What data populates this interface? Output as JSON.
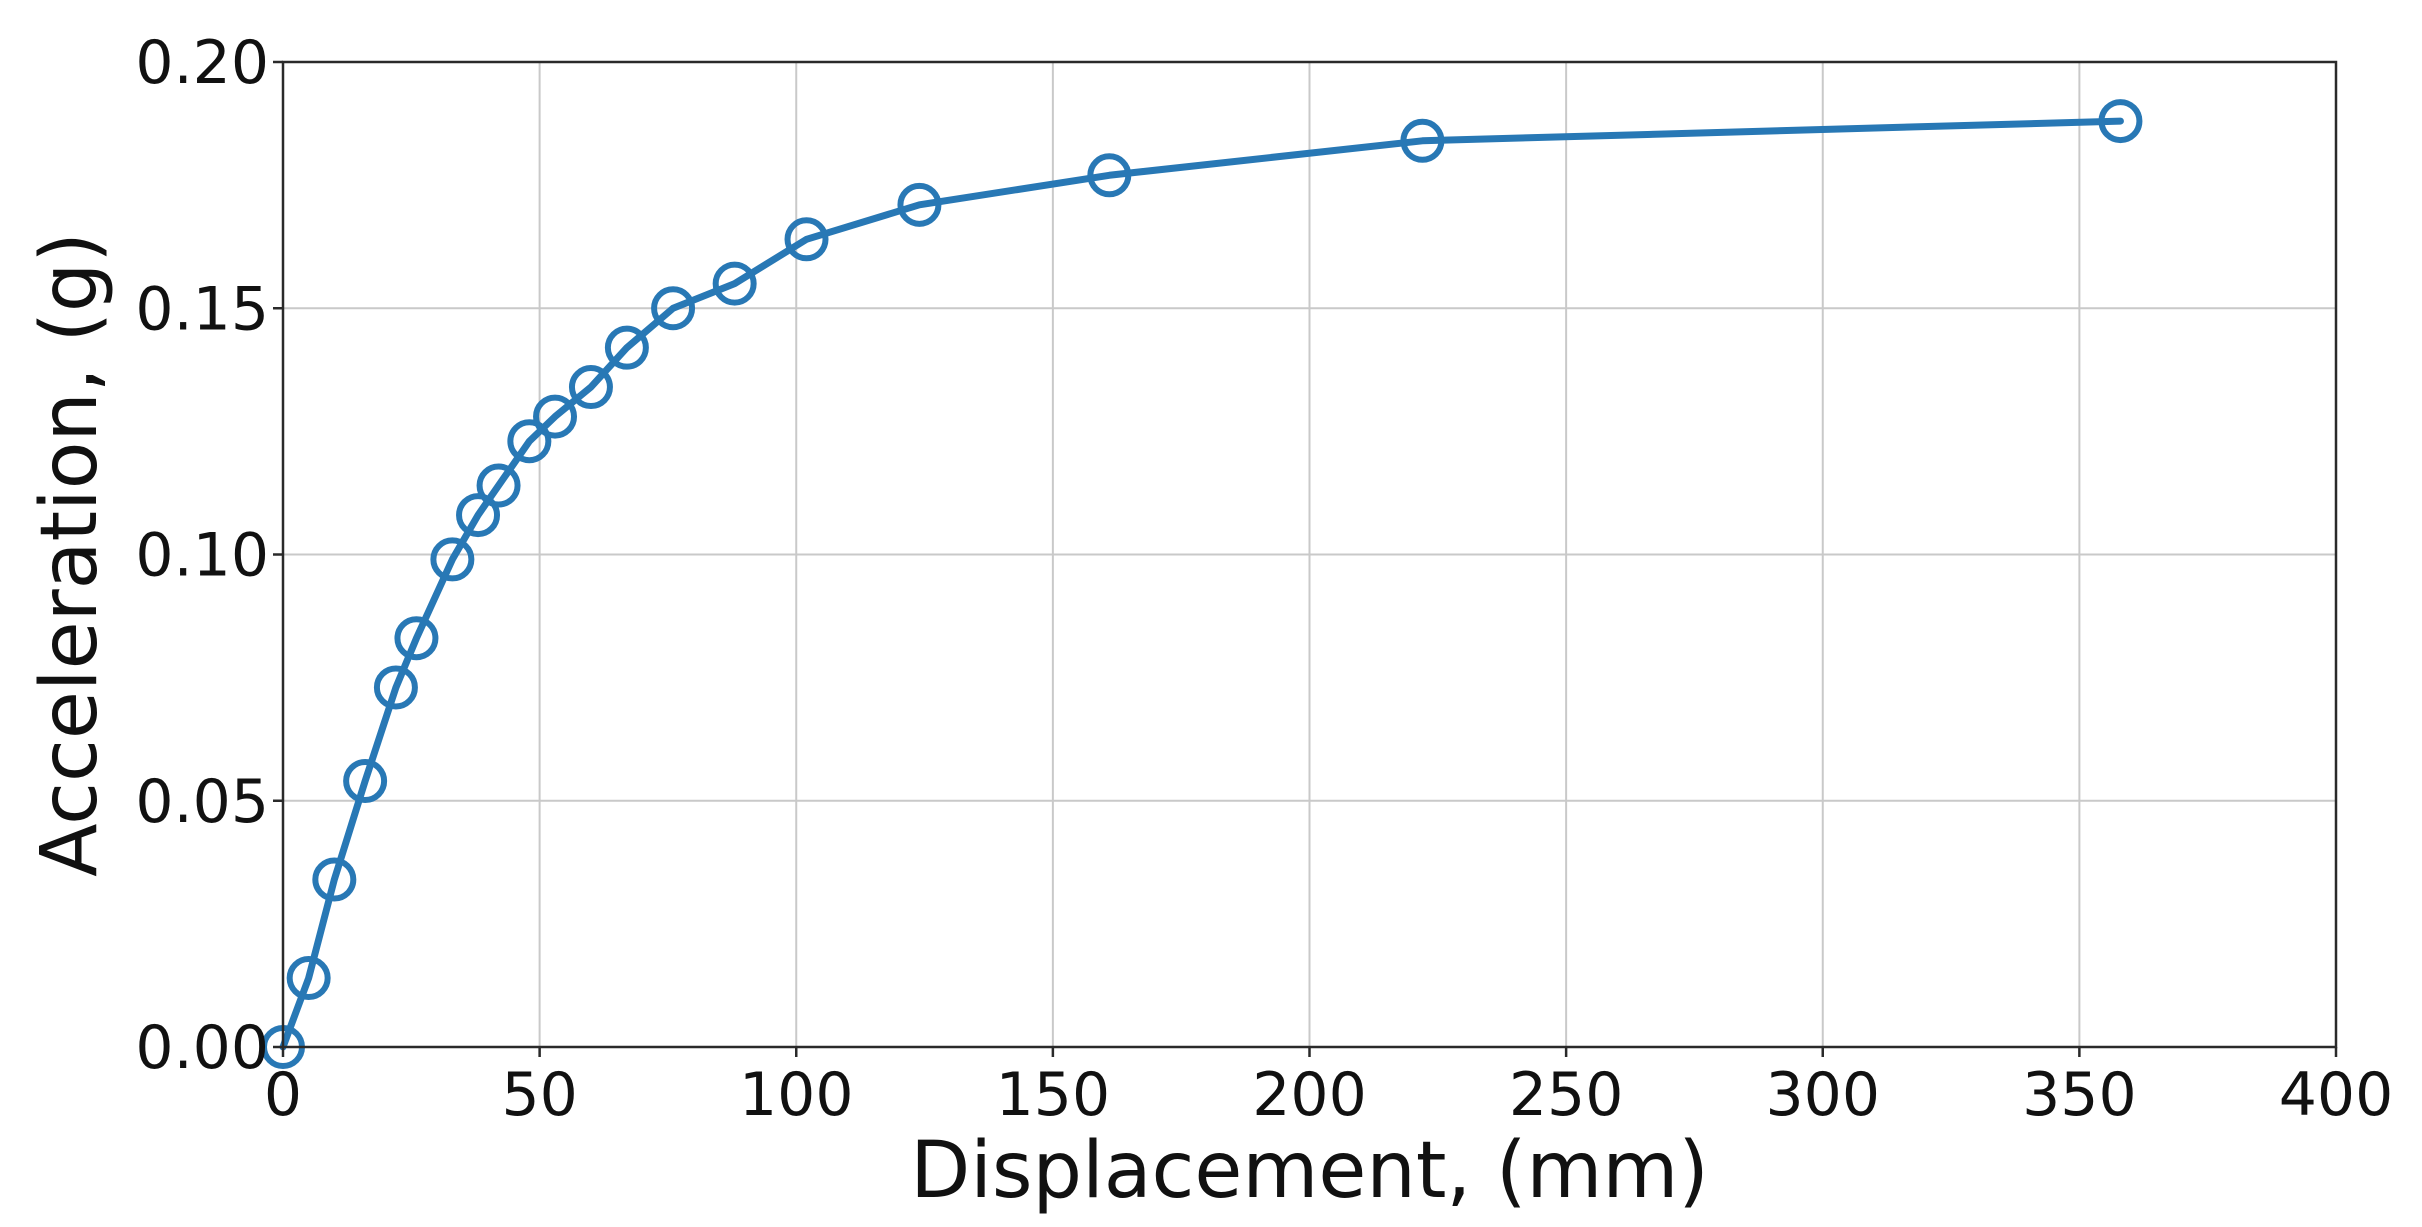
{
  "chart_data": {
    "type": "line",
    "title": "",
    "xlabel": "Displacement, (mm)",
    "ylabel": "Acceleration, (g)",
    "xlim": [
      0,
      400
    ],
    "ylim": [
      0,
      0.2
    ],
    "xticks": [
      0,
      50,
      100,
      150,
      200,
      250,
      300,
      350,
      400
    ],
    "yticks": [
      0.0,
      0.05,
      0.1,
      0.15,
      0.2
    ],
    "xtick_labels": [
      "0",
      "50",
      "100",
      "150",
      "200",
      "250",
      "300",
      "350",
      "400"
    ],
    "ytick_labels": [
      "0.00",
      "0.05",
      "0.10",
      "0.15",
      "0.20"
    ],
    "grid": true,
    "marker": "open-circle",
    "color": "#2878b5",
    "series": [
      {
        "x": [
          0,
          5,
          10,
          16,
          22,
          26,
          33,
          38,
          42,
          48,
          53,
          60,
          67,
          76,
          88,
          102,
          124,
          161,
          222,
          358
        ],
        "y": [
          0.0,
          0.014,
          0.034,
          0.054,
          0.073,
          0.083,
          0.099,
          0.108,
          0.114,
          0.123,
          0.128,
          0.134,
          0.142,
          0.15,
          0.155,
          0.164,
          0.171,
          0.177,
          0.184,
          0.188
        ]
      }
    ]
  }
}
